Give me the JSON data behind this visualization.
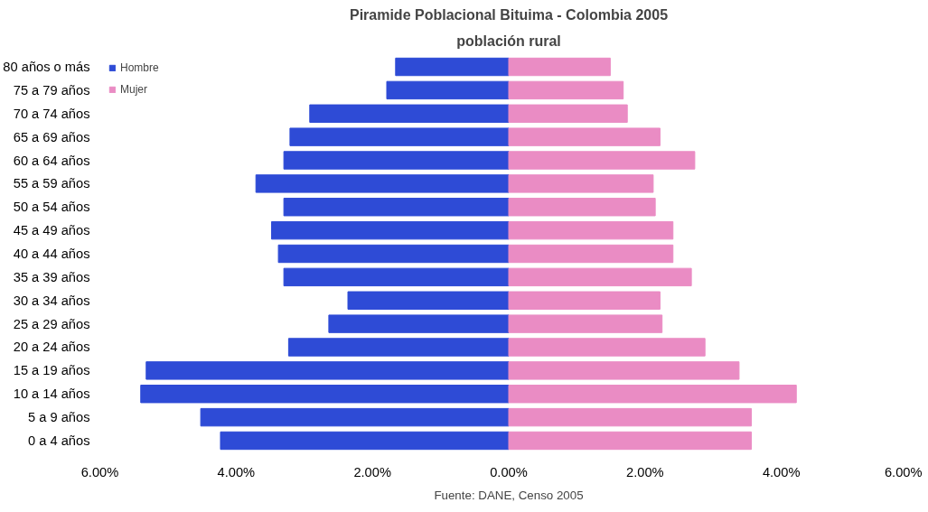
{
  "chart_data": {
    "type": "bar",
    "orientation": "horizontal",
    "stacked": true,
    "title": "Piramide Poblacional Bituima - Colombia 2005",
    "subtitle": "población rural",
    "categories": [
      "80 años o más",
      "75 a 79 años",
      "70 a 74 años",
      "65 a 69 años",
      "60 a 64 años",
      "55 a 59 años",
      "50 a 54 años",
      "45 a 49 años",
      "40 a 44 años",
      "35 a 39 años",
      "30 a 34 años",
      "25 a 29 años",
      "20 a 24 años",
      "15 a 19 años",
      "10 a 14 años",
      "5 a 9 años",
      "0 a 4 años"
    ],
    "series": [
      {
        "name": "Hombre",
        "color": "#2e4bd6",
        "values": [
          -1.66,
          -1.79,
          -2.92,
          -3.21,
          -3.3,
          -3.71,
          -3.3,
          -3.48,
          -3.38,
          -3.3,
          -2.36,
          -2.64,
          -3.23,
          -5.32,
          -5.4,
          -4.52,
          -4.23
        ]
      },
      {
        "name": "Mujer",
        "color": "#ea8cc4",
        "values": [
          1.49,
          1.68,
          1.74,
          2.22,
          2.73,
          2.12,
          2.15,
          2.41,
          2.41,
          2.68,
          2.22,
          2.25,
          2.88,
          3.38,
          4.22,
          3.56,
          3.56
        ]
      }
    ],
    "xlim": [
      -6,
      6
    ],
    "xticks": [
      {
        "value": -6,
        "label": "6.00%"
      },
      {
        "value": -4,
        "label": "4.00%"
      },
      {
        "value": -2,
        "label": "2.00%"
      },
      {
        "value": 0,
        "label": "0.00%"
      },
      {
        "value": 2,
        "label": "2.00%"
      },
      {
        "value": 4,
        "label": "4.00%"
      },
      {
        "value": 6,
        "label": "6.00%"
      }
    ],
    "grid": false,
    "legend": "top left",
    "annotations": [
      "Fuente: DANE, Censo 2005"
    ]
  }
}
